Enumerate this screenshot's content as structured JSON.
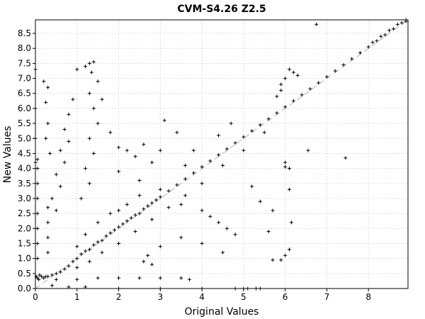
{
  "chart_data": {
    "type": "scatter",
    "title": "CVM-S4.26 Z2.5",
    "xlabel": "Original Values",
    "ylabel": "New Values",
    "xlim": [
      0,
      8.95
    ],
    "ylim": [
      0,
      8.95
    ],
    "xticks": [
      0,
      1,
      2,
      3,
      4,
      5,
      6,
      7,
      8
    ],
    "xtick_labels": [
      "0",
      "1",
      "2",
      "3",
      "4",
      "5",
      "6",
      "7",
      "8"
    ],
    "yticks": [
      0,
      0.5,
      1,
      1.5,
      2,
      2.5,
      3,
      3.5,
      4,
      4.5,
      5,
      5.5,
      6,
      6.5,
      7,
      7.5,
      8,
      8.5
    ],
    "ytick_labels": [
      "0.0",
      "0.5",
      "1.0",
      "1.5",
      "2.0",
      "2.5",
      "3.0",
      "3.5",
      "4.0",
      "4.5",
      "5.0",
      "5.5",
      "6.0",
      "6.5",
      "7.0",
      "7.5",
      "8.0",
      "8.5"
    ],
    "grid": true,
    "reference_line": {
      "style": "dashed",
      "color": "#cccccc",
      "from": [
        0,
        0
      ],
      "to": [
        8.95,
        8.95
      ]
    },
    "marker": {
      "symbol": "+",
      "color": "#000000"
    },
    "series": [
      {
        "values": [
          [
            0.0,
            0.0
          ],
          [
            0.02,
            0.4
          ],
          [
            0.05,
            0.35
          ],
          [
            0.08,
            0.3
          ],
          [
            0.1,
            0.45
          ],
          [
            0.15,
            0.4
          ],
          [
            0.2,
            0.35
          ],
          [
            0.25,
            0.4
          ],
          [
            0.3,
            0.4
          ],
          [
            0.4,
            0.45
          ],
          [
            0.5,
            0.5
          ],
          [
            0.6,
            0.55
          ],
          [
            0.7,
            0.65
          ],
          [
            0.8,
            0.75
          ],
          [
            0.9,
            0.9
          ],
          [
            1.0,
            1.0
          ],
          [
            1.1,
            1.15
          ],
          [
            1.2,
            1.25
          ],
          [
            1.3,
            1.3
          ],
          [
            1.4,
            1.45
          ],
          [
            1.5,
            1.55
          ],
          [
            1.6,
            1.6
          ],
          [
            1.7,
            1.75
          ],
          [
            1.8,
            1.85
          ],
          [
            1.9,
            1.95
          ],
          [
            2.0,
            2.05
          ],
          [
            2.1,
            2.15
          ],
          [
            2.2,
            2.25
          ],
          [
            2.3,
            2.35
          ],
          [
            2.4,
            2.45
          ],
          [
            2.5,
            2.5
          ],
          [
            2.6,
            2.65
          ],
          [
            2.7,
            2.75
          ],
          [
            2.8,
            2.85
          ],
          [
            2.9,
            2.95
          ],
          [
            3.0,
            3.05
          ],
          [
            3.2,
            3.25
          ],
          [
            3.4,
            3.45
          ],
          [
            3.6,
            3.65
          ],
          [
            3.8,
            3.85
          ],
          [
            4.0,
            4.05
          ],
          [
            4.2,
            4.25
          ],
          [
            4.4,
            4.45
          ],
          [
            4.6,
            4.65
          ],
          [
            4.8,
            4.85
          ],
          [
            5.0,
            5.05
          ],
          [
            5.2,
            5.25
          ],
          [
            5.4,
            5.45
          ],
          [
            5.6,
            5.65
          ],
          [
            5.8,
            5.85
          ],
          [
            6.0,
            6.05
          ],
          [
            6.2,
            6.25
          ],
          [
            6.4,
            6.45
          ],
          [
            6.6,
            6.65
          ],
          [
            6.8,
            6.85
          ],
          [
            7.0,
            7.05
          ],
          [
            7.2,
            7.25
          ],
          [
            7.4,
            7.45
          ],
          [
            7.6,
            7.65
          ],
          [
            7.8,
            7.85
          ],
          [
            8.0,
            8.05
          ],
          [
            8.2,
            8.25
          ],
          [
            8.4,
            8.45
          ],
          [
            8.6,
            8.65
          ],
          [
            8.8,
            8.85
          ],
          [
            8.9,
            8.9
          ],
          [
            1.0,
            1.4
          ],
          [
            1.2,
            1.8
          ],
          [
            1.5,
            2.2
          ],
          [
            1.8,
            2.5
          ],
          [
            2.0,
            2.6
          ],
          [
            2.2,
            2.8
          ],
          [
            2.5,
            3.1
          ],
          [
            1.0,
            0.7
          ],
          [
            1.3,
            0.9
          ],
          [
            1.6,
            1.2
          ],
          [
            2.0,
            1.5
          ],
          [
            2.4,
            1.9
          ],
          [
            2.8,
            2.3
          ],
          [
            3.2,
            2.7
          ],
          [
            3.6,
            3.1
          ],
          [
            4.0,
            3.5
          ],
          [
            4.5,
            4.1
          ],
          [
            5.0,
            4.6
          ],
          [
            5.5,
            5.2
          ],
          [
            5.8,
            6.4
          ],
          [
            5.9,
            6.8
          ],
          [
            6.0,
            7.0
          ],
          [
            6.2,
            7.2
          ],
          [
            6.3,
            7.1
          ],
          [
            5.9,
            6.6
          ],
          [
            6.1,
            7.3
          ],
          [
            6.0,
            4.2
          ],
          [
            6.1,
            4.0
          ],
          [
            6.0,
            4.05
          ],
          [
            6.1,
            1.3
          ],
          [
            6.0,
            1.1
          ],
          [
            5.9,
            0.95
          ],
          [
            6.15,
            2.2
          ],
          [
            6.55,
            4.6
          ],
          [
            7.45,
            4.35
          ],
          [
            6.75,
            8.8
          ],
          [
            1.0,
            7.3
          ],
          [
            1.2,
            7.4
          ],
          [
            1.3,
            7.5
          ],
          [
            1.4,
            7.55
          ],
          [
            1.35,
            7.2
          ],
          [
            1.5,
            6.9
          ],
          [
            1.3,
            6.5
          ],
          [
            1.4,
            6.0
          ],
          [
            1.5,
            5.5
          ],
          [
            1.3,
            5.0
          ],
          [
            1.4,
            4.5
          ],
          [
            1.2,
            4.0
          ],
          [
            1.3,
            3.5
          ],
          [
            1.1,
            3.0
          ],
          [
            0.9,
            6.3
          ],
          [
            0.8,
            5.8
          ],
          [
            0.7,
            5.3
          ],
          [
            0.8,
            4.9
          ],
          [
            0.6,
            4.6
          ],
          [
            0.7,
            4.2
          ],
          [
            0.5,
            3.8
          ],
          [
            0.6,
            3.4
          ],
          [
            0.4,
            3.0
          ],
          [
            0.5,
            2.6
          ],
          [
            0.3,
            6.7
          ],
          [
            0.2,
            6.9
          ],
          [
            0.25,
            6.2
          ],
          [
            0.3,
            5.5
          ],
          [
            0.25,
            5.0
          ],
          [
            0.35,
            4.5
          ],
          [
            1.6,
            6.3
          ],
          [
            1.8,
            5.2
          ],
          [
            2.0,
            4.7
          ],
          [
            2.2,
            4.6
          ],
          [
            2.4,
            4.4
          ],
          [
            2.6,
            4.8
          ],
          [
            2.8,
            4.2
          ],
          [
            3.0,
            4.6
          ],
          [
            3.1,
            5.6
          ],
          [
            3.4,
            5.2
          ],
          [
            3.6,
            4.1
          ],
          [
            3.8,
            4.6
          ],
          [
            2.0,
            3.9
          ],
          [
            2.5,
            3.6
          ],
          [
            3.0,
            3.3
          ],
          [
            3.5,
            2.8
          ],
          [
            4.0,
            2.6
          ],
          [
            4.2,
            2.4
          ],
          [
            4.4,
            2.2
          ],
          [
            4.6,
            2.0
          ],
          [
            4.8,
            1.8
          ],
          [
            4.0,
            1.5
          ],
          [
            4.5,
            1.2
          ],
          [
            3.5,
            1.7
          ],
          [
            3.0,
            1.4
          ],
          [
            2.7,
            1.1
          ],
          [
            2.6,
            0.9
          ],
          [
            2.8,
            0.8
          ],
          [
            5.2,
            3.4
          ],
          [
            5.4,
            2.9
          ],
          [
            5.7,
            2.6
          ],
          [
            5.6,
            1.9
          ],
          [
            5.7,
            0.95
          ],
          [
            6.1,
            3.3
          ],
          [
            4.7,
            5.5
          ],
          [
            4.4,
            5.1
          ],
          [
            0.05,
            1.0
          ],
          [
            0.05,
            1.5
          ],
          [
            0.05,
            2.0
          ],
          [
            0.05,
            2.5
          ],
          [
            0.05,
            3.0
          ],
          [
            0.05,
            3.5
          ],
          [
            0.05,
            4.0
          ],
          [
            0.05,
            4.3
          ],
          [
            0.0,
            7.3
          ],
          [
            0.0,
            6.0
          ],
          [
            0.0,
            5.0
          ],
          [
            0.0,
            4.2
          ],
          [
            0.3,
            1.2
          ],
          [
            0.3,
            1.7
          ],
          [
            0.3,
            2.2
          ],
          [
            0.3,
            2.7
          ],
          [
            0.5,
            0.3
          ],
          [
            1.0,
            0.3
          ],
          [
            1.5,
            0.35
          ],
          [
            2.0,
            0.35
          ],
          [
            2.5,
            0.35
          ],
          [
            3.0,
            0.35
          ],
          [
            3.5,
            0.35
          ],
          [
            3.7,
            0.3
          ],
          [
            0.4,
            0.1
          ],
          [
            0.8,
            0.05
          ],
          [
            1.2,
            0.05
          ],
          [
            2.0,
            0.0
          ],
          [
            3.0,
            0.0
          ],
          [
            4.0,
            0.0
          ],
          [
            5.0,
            0.0
          ],
          [
            5.4,
            0.0
          ],
          [
            4.8,
            0.0
          ],
          [
            5.1,
            0.0
          ],
          [
            5.3,
            0.0
          ],
          [
            8.1,
            8.2
          ],
          [
            8.3,
            8.4
          ],
          [
            8.5,
            8.6
          ],
          [
            8.7,
            8.8
          ],
          [
            8.9,
            8.95
          ]
        ]
      }
    ]
  }
}
